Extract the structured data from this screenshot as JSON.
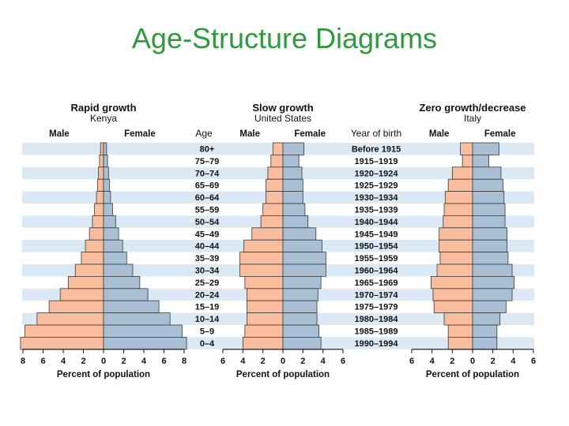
{
  "slide": {
    "title": "Age-Structure Diagrams"
  },
  "labels": {
    "age_header": "Age",
    "birth_header": "Year of birth",
    "male": "Male",
    "female": "Female"
  },
  "colors": {
    "male": "#f8bd9c",
    "female": "#a9bfd4",
    "band_light": "#dbe9f4",
    "band_white": "#ffffff",
    "outline": "#3a3a3a"
  },
  "chart_data": [
    {
      "type": "bar",
      "orientation": "population-pyramid",
      "title": "Rapid growth",
      "subtitle": "Kenya",
      "xlabel": "Percent of population",
      "xlim": [
        0,
        8
      ],
      "xticks": [
        "8",
        "6",
        "4",
        "2",
        "0",
        "2",
        "4",
        "6",
        "8"
      ],
      "categories": [
        "80+",
        "75–79",
        "70–74",
        "65–69",
        "60–64",
        "55–59",
        "50–54",
        "45–49",
        "40–44",
        "35–39",
        "30–34",
        "25–29",
        "20–24",
        "15–19",
        "10–14",
        "5–9",
        "0–4"
      ],
      "series": [
        {
          "name": "Male",
          "values": [
            0.3,
            0.4,
            0.5,
            0.6,
            0.7,
            0.9,
            1.1,
            1.4,
            1.8,
            2.2,
            2.8,
            3.5,
            4.3,
            5.4,
            6.6,
            7.8,
            9.0
          ]
        },
        {
          "name": "Female",
          "values": [
            0.3,
            0.4,
            0.5,
            0.6,
            0.7,
            0.9,
            1.2,
            1.5,
            1.9,
            2.3,
            2.9,
            3.6,
            4.4,
            5.5,
            6.6,
            7.8,
            9.0
          ]
        }
      ]
    },
    {
      "type": "bar",
      "orientation": "population-pyramid",
      "title": "Slow growth",
      "subtitle": "United States",
      "xlabel": "Percent of population",
      "xlim": [
        0,
        6
      ],
      "xticks": [
        "6",
        "4",
        "2",
        "0",
        "2",
        "4",
        "6"
      ],
      "categories": [
        "80+",
        "75–79",
        "70–74",
        "65–69",
        "60–64",
        "55–59",
        "50–54",
        "45–49",
        "40–44",
        "35–39",
        "30–34",
        "25–29",
        "20–24",
        "15–19",
        "10–14",
        "5–9",
        "0–4"
      ],
      "birth_years": [
        "Before 1915",
        "1915–1919",
        "1920–1924",
        "1925–1929",
        "1930–1934",
        "1935–1939",
        "1940–1944",
        "1945–1949",
        "1950–1954",
        "1955–1959",
        "1960–1964",
        "1965–1969",
        "1970–1974",
        "1975–1979",
        "1980–1984",
        "1985–1989",
        "1990–1994"
      ],
      "series": [
        {
          "name": "Male",
          "values": [
            1.0,
            1.2,
            1.5,
            1.7,
            1.7,
            2.0,
            2.2,
            3.1,
            3.9,
            4.3,
            4.3,
            3.8,
            3.6,
            3.6,
            3.6,
            3.8,
            4.0
          ]
        },
        {
          "name": "Female",
          "values": [
            2.1,
            1.6,
            1.9,
            2.0,
            2.0,
            2.2,
            2.5,
            3.3,
            3.9,
            4.3,
            4.3,
            3.8,
            3.5,
            3.4,
            3.4,
            3.6,
            3.8
          ]
        }
      ]
    },
    {
      "type": "bar",
      "orientation": "population-pyramid",
      "title": "Zero growth/decrease",
      "subtitle": "Italy",
      "xlabel": "Percent of population",
      "xlim": [
        0,
        6
      ],
      "xticks": [
        "6",
        "4",
        "2",
        "0",
        "2",
        "4",
        "6"
      ],
      "categories": [
        "80+",
        "75–79",
        "70–74",
        "65–69",
        "60–64",
        "55–59",
        "50–54",
        "45–49",
        "40–44",
        "35–39",
        "30–34",
        "25–29",
        "20–24",
        "15–19",
        "10–14",
        "5–9",
        "0–4"
      ],
      "series": [
        {
          "name": "Male",
          "values": [
            1.2,
            1.0,
            2.0,
            2.4,
            2.7,
            2.8,
            2.9,
            3.3,
            3.3,
            3.2,
            3.5,
            4.1,
            3.9,
            3.8,
            2.8,
            2.4,
            2.4
          ]
        },
        {
          "name": "Female",
          "values": [
            2.6,
            1.6,
            2.8,
            3.0,
            3.1,
            3.2,
            3.2,
            3.4,
            3.4,
            3.5,
            3.9,
            4.1,
            3.9,
            3.3,
            2.7,
            2.4,
            2.4
          ]
        }
      ]
    }
  ]
}
